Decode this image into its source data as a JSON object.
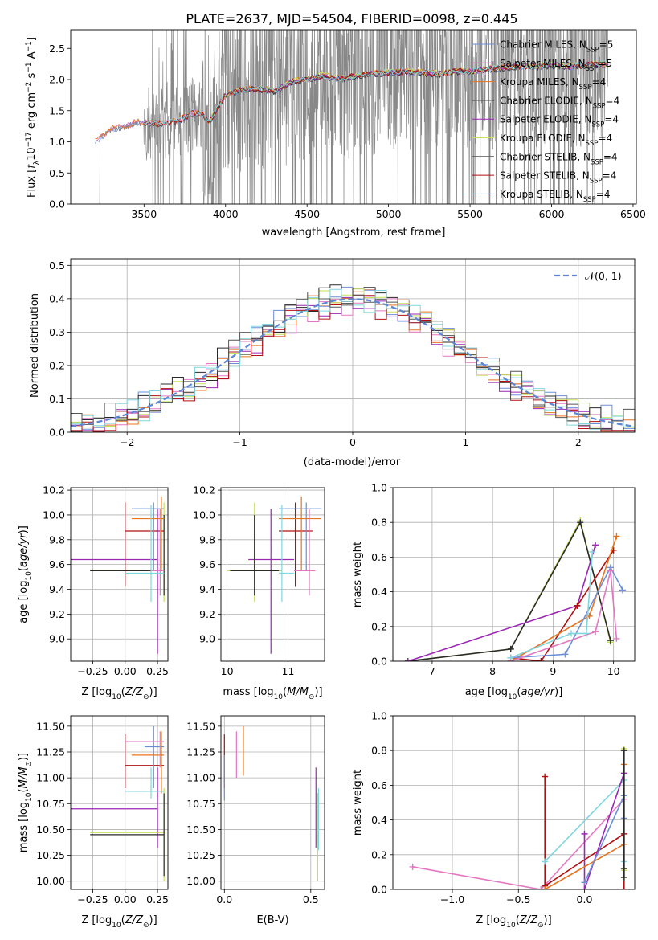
{
  "title": "PLATE=2637, MJD=54504, FIBERID=0098, z=0.445",
  "colors": {
    "chabrier_miles": "#6a8fd8",
    "salpeter_miles": "#e377c2",
    "kroupa_miles": "#e8731f",
    "chabrier_elodie": "#2a2a2a",
    "salpeter_elodie": "#9b27b3",
    "kroupa_elodie": "#c5e05c",
    "chabrier_stelib": "#555555",
    "salpeter_stelib": "#b01010",
    "kroupa_stelib": "#7fd6de",
    "data": "#888888",
    "grid": "#b0b0b0"
  },
  "chart_data": [
    {
      "type": "line",
      "panel": "spectrum",
      "xlabel": "wavelength [Angstrom, rest frame]",
      "ylabel": "Flux [fλ 10^-17 erg cm^-2 s^-1 A^-1]",
      "xlim": [
        3050,
        6520
      ],
      "ylim": [
        0,
        2.8
      ],
      "xticks": [
        3500,
        4000,
        4500,
        5000,
        5500,
        6000,
        6500
      ],
      "yticks": [
        0.0,
        0.5,
        1.0,
        1.5,
        2.0,
        2.5
      ],
      "legend_loc": "top-right",
      "legend": [
        {
          "label": "Chabrier MILES, N",
          "sub": "SSP",
          "n": "=5",
          "color_key": "chabrier_miles"
        },
        {
          "label": "Salpeter MILES, N",
          "sub": "SSP",
          "n": "=5",
          "color_key": "salpeter_miles"
        },
        {
          "label": "Kroupa MILES, N",
          "sub": "SSP",
          "n": "=4",
          "color_key": "kroupa_miles"
        },
        {
          "label": "Chabrier ELODIE, N",
          "sub": "SSP",
          "n": "=4",
          "color_key": "chabrier_elodie"
        },
        {
          "label": "Salpeter ELODIE, N",
          "sub": "SSP",
          "n": "=4",
          "color_key": "salpeter_elodie"
        },
        {
          "label": "Kroupa ELODIE, N",
          "sub": "SSP",
          "n": "=4",
          "color_key": "kroupa_elodie"
        },
        {
          "label": "Chabrier STELIB, N",
          "sub": "SSP",
          "n": "=4",
          "color_key": "chabrier_stelib"
        },
        {
          "label": "Salpeter STELIB, N",
          "sub": "SSP",
          "n": "=4",
          "color_key": "salpeter_stelib"
        },
        {
          "label": "Kroupa STELIB, N",
          "sub": "SSP",
          "n": "=4",
          "color_key": "kroupa_stelib"
        }
      ],
      "model_continuum": {
        "x": [
          3200,
          3230,
          3250,
          3300,
          3350,
          3400,
          3450,
          3500,
          3600,
          3700,
          3800,
          3850,
          3900,
          4000,
          4100,
          4200,
          4300,
          4400,
          4500,
          4600,
          4700,
          4800,
          4900,
          5000,
          5100,
          5200,
          5300,
          5400,
          5500,
          5600,
          5700,
          5800,
          5900,
          6000,
          6100,
          6200,
          6300,
          6350
        ],
        "y": [
          1.0,
          1.05,
          1.1,
          1.2,
          1.22,
          1.25,
          1.3,
          1.3,
          1.28,
          1.32,
          1.45,
          1.45,
          1.3,
          1.75,
          1.82,
          1.85,
          1.8,
          1.95,
          2.0,
          2.05,
          2.0,
          2.05,
          2.08,
          2.1,
          2.12,
          2.1,
          2.08,
          2.12,
          2.12,
          2.15,
          2.18,
          2.2,
          2.2,
          2.22,
          2.2,
          2.22,
          2.24,
          2.22
        ]
      }
    },
    {
      "type": "line",
      "panel": "residuals",
      "xlabel": "(data-model)/error",
      "ylabel": "Normed distribution",
      "xlim": [
        -2.5,
        2.5
      ],
      "ylim": [
        0,
        0.52
      ],
      "xticks": [
        -2,
        -1,
        0,
        1,
        2
      ],
      "xtick_labels": [
        "−2",
        "−1",
        "0",
        "1",
        "2"
      ],
      "yticks": [
        0.0,
        0.1,
        0.2,
        0.3,
        0.4,
        0.5
      ],
      "ytick_labels": [
        "0.0",
        "0.1",
        "0.2",
        "0.3",
        "0.4",
        "0.5"
      ],
      "legend_loc": "top-right",
      "legend_label": "𝒩(0, 1)",
      "reference": "normal(0,1) pdf"
    },
    {
      "type": "scatter",
      "panel": "age_vs_Z",
      "xlabel": "Z [log10(Z/Z⊙)]",
      "ylabel": "age [log10(age/yr)]",
      "xlim": [
        -0.42,
        0.33
      ],
      "ylim": [
        8.82,
        10.22
      ],
      "xticks": [
        -0.25,
        0.0,
        0.25
      ],
      "xtick_labels": [
        "−0.25",
        "0.00",
        "0.25"
      ],
      "yticks": [
        9.0,
        9.2,
        9.4,
        9.6,
        9.8,
        10.0,
        10.2
      ],
      "ytick_labels": [
        "9.0",
        "9.2",
        "9.4",
        "9.6",
        "9.8",
        "10.0",
        "10.2"
      ],
      "points": [
        {
          "c": "salpeter_stelib",
          "x": 0.0,
          "xe": [
            0.0,
            0.3
          ],
          "y": 9.87,
          "ye": [
            9.42,
            10.1
          ]
        },
        {
          "c": "salpeter_elodie",
          "x": 0.25,
          "xe": [
            -0.42,
            0.25
          ],
          "y": 9.64,
          "ye": [
            8.88,
            10.05
          ]
        },
        {
          "c": "kroupa_elodie",
          "x": 0.3,
          "xe": [
            -0.27,
            0.3
          ],
          "y": 9.55,
          "ye": [
            9.3,
            10.1
          ]
        },
        {
          "c": "chabrier_elodie",
          "x": 0.3,
          "xe": [
            -0.27,
            0.3
          ],
          "y": 9.55,
          "ye": [
            9.35,
            10.0
          ]
        },
        {
          "c": "chabrier_miles",
          "x": 0.22,
          "xe": [
            0.05,
            0.3
          ],
          "y": 10.05,
          "ye": [
            9.55,
            10.1
          ]
        },
        {
          "c": "kroupa_miles",
          "x": 0.28,
          "xe": [
            0.05,
            0.3
          ],
          "y": 9.97,
          "ye": [
            9.55,
            10.15
          ]
        },
        {
          "c": "salpeter_miles",
          "x": 0.27,
          "xe": [
            0.2,
            0.3
          ],
          "y": 9.55,
          "ye": [
            9.35,
            10.05
          ]
        },
        {
          "c": "kroupa_stelib",
          "x": 0.2,
          "xe": [
            0.0,
            0.3
          ],
          "y": 9.53,
          "ye": [
            9.3,
            10.08
          ]
        }
      ]
    },
    {
      "type": "scatter",
      "panel": "age_vs_mass",
      "xlabel": "mass [log10(M/M⊙)]",
      "ylabel": "",
      "xlim": [
        9.9,
        11.6
      ],
      "ylim": [
        8.82,
        10.22
      ],
      "xticks": [
        10,
        11
      ],
      "xtick_labels": [
        "10",
        "11"
      ],
      "yticks": [
        9.0,
        9.2,
        9.4,
        9.6,
        9.8,
        10.0,
        10.2
      ],
      "ytick_labels": [
        "9.0",
        "9.2",
        "9.4",
        "9.6",
        "9.8",
        "10.0",
        "10.2"
      ],
      "points": [
        {
          "c": "salpeter_stelib",
          "x": 11.12,
          "xe": [
            10.85,
            11.4
          ],
          "y": 9.87,
          "ye": [
            9.42,
            10.1
          ]
        },
        {
          "c": "salpeter_elodie",
          "x": 10.72,
          "xe": [
            10.35,
            11.1
          ],
          "y": 9.64,
          "ye": [
            8.88,
            10.05
          ]
        },
        {
          "c": "kroupa_elodie",
          "x": 10.45,
          "xe": [
            10.0,
            10.9
          ],
          "y": 9.55,
          "ye": [
            9.3,
            10.1
          ]
        },
        {
          "c": "chabrier_elodie",
          "x": 10.45,
          "xe": [
            10.05,
            10.85
          ],
          "y": 9.55,
          "ye": [
            9.35,
            10.0
          ]
        },
        {
          "c": "chabrier_miles",
          "x": 11.3,
          "xe": [
            10.85,
            11.55
          ],
          "y": 10.05,
          "ye": [
            9.55,
            10.1
          ]
        },
        {
          "c": "kroupa_miles",
          "x": 11.22,
          "xe": [
            10.85,
            11.55
          ],
          "y": 9.97,
          "ye": [
            9.55,
            10.15
          ]
        },
        {
          "c": "salpeter_miles",
          "x": 11.35,
          "xe": [
            11.1,
            11.45
          ],
          "y": 9.55,
          "ye": [
            9.35,
            10.05
          ]
        },
        {
          "c": "kroupa_stelib",
          "x": 10.9,
          "xe": [
            10.85,
            11.1
          ],
          "y": 9.53,
          "ye": [
            9.3,
            10.08
          ]
        }
      ]
    },
    {
      "type": "line",
      "panel": "weight_vs_age",
      "xlabel": "age [log10(age/yr)]",
      "ylabel": "mass weight",
      "xlim": [
        6.35,
        10.35
      ],
      "ylim": [
        0,
        1.0
      ],
      "xticks": [
        7,
        8,
        9,
        10
      ],
      "xtick_labels": [
        "7",
        "8",
        "9",
        "10"
      ],
      "yticks": [
        0.0,
        0.2,
        0.4,
        0.6,
        0.8,
        1.0
      ],
      "ytick_labels": [
        "0.0",
        "0.2",
        "0.4",
        "0.6",
        "0.8",
        "1.0"
      ],
      "series": [
        {
          "c": "kroupa_elodie",
          "x": [
            6.6,
            8.3,
            9.45,
            9.95
          ],
          "y": [
            0.0,
            0.07,
            0.81,
            0.11
          ]
        },
        {
          "c": "chabrier_elodie",
          "x": [
            6.6,
            8.3,
            9.45,
            9.95
          ],
          "y": [
            0.0,
            0.07,
            0.8,
            0.12
          ]
        },
        {
          "c": "salpeter_elodie",
          "x": [
            6.6,
            9.4,
            9.7
          ],
          "y": [
            0.0,
            0.32,
            0.67
          ]
        },
        {
          "c": "salpeter_stelib",
          "x": [
            8.3,
            8.8,
            9.4,
            10.0
          ],
          "y": [
            0.02,
            0.0,
            0.32,
            0.64
          ]
        },
        {
          "c": "kroupa_miles",
          "x": [
            8.3,
            9.6,
            10.05
          ],
          "y": [
            0.0,
            0.26,
            0.72
          ]
        },
        {
          "c": "chabrier_miles",
          "x": [
            8.3,
            9.2,
            9.95,
            10.15
          ],
          "y": [
            0.02,
            0.04,
            0.54,
            0.41
          ]
        },
        {
          "c": "salpeter_miles",
          "x": [
            8.3,
            9.7,
            9.95,
            10.05
          ],
          "y": [
            0.0,
            0.17,
            0.52,
            0.13
          ]
        },
        {
          "c": "kroupa_stelib",
          "x": [
            8.3,
            9.3,
            9.55,
            9.65
          ],
          "y": [
            0.02,
            0.16,
            0.16,
            0.63
          ]
        }
      ]
    },
    {
      "type": "scatter",
      "panel": "mass_vs_Z",
      "xlabel": "Z [log10(Z/Z⊙)]",
      "ylabel": "mass [log10(M/M⊙)]",
      "xlim": [
        -0.42,
        0.33
      ],
      "ylim": [
        9.92,
        11.6
      ],
      "xticks": [
        -0.25,
        0.0,
        0.25
      ],
      "xtick_labels": [
        "−0.25",
        "0.00",
        "0.25"
      ],
      "yticks": [
        10.0,
        10.25,
        10.5,
        10.75,
        11.0,
        11.25,
        11.5
      ],
      "ytick_labels": [
        "10.00",
        "10.25",
        "10.50",
        "10.75",
        "11.00",
        "11.25",
        "11.50"
      ],
      "points": [
        {
          "c": "salpeter_stelib",
          "x": 0.0,
          "xe": [
            0.0,
            0.3
          ],
          "y": 11.12,
          "ye": [
            10.9,
            11.42
          ]
        },
        {
          "c": "salpeter_elodie",
          "x": 0.25,
          "xe": [
            -0.42,
            0.25
          ],
          "y": 10.7,
          "ye": [
            10.32,
            11.1
          ]
        },
        {
          "c": "kroupa_elodie",
          "x": 0.3,
          "xe": [
            -0.27,
            0.3
          ],
          "y": 10.47,
          "ye": [
            10.0,
            10.9
          ]
        },
        {
          "c": "chabrier_elodie",
          "x": 0.3,
          "xe": [
            -0.27,
            0.3
          ],
          "y": 10.45,
          "ye": [
            10.05,
            10.85
          ]
        },
        {
          "c": "chabrier_miles",
          "x": 0.22,
          "xe": [
            0.15,
            0.3
          ],
          "y": 11.3,
          "ye": [
            10.9,
            11.5
          ]
        },
        {
          "c": "kroupa_miles",
          "x": 0.28,
          "xe": [
            0.05,
            0.3
          ],
          "y": 11.22,
          "ye": [
            10.85,
            11.45
          ]
        },
        {
          "c": "salpeter_miles",
          "x": 0.27,
          "xe": [
            0.0,
            0.3
          ],
          "y": 11.35,
          "ye": [
            11.1,
            11.45
          ]
        },
        {
          "c": "kroupa_stelib",
          "x": 0.2,
          "xe": [
            0.0,
            0.3
          ],
          "y": 10.87,
          "ye": [
            10.8,
            11.1
          ]
        }
      ]
    },
    {
      "type": "scatter",
      "panel": "mass_vs_EBV",
      "xlabel": "E(B-V)",
      "ylabel": "",
      "xlim": [
        -0.02,
        0.58
      ],
      "ylim": [
        9.92,
        11.6
      ],
      "xticks": [
        0.0,
        0.5
      ],
      "xtick_labels": [
        "0.0",
        "0.5"
      ],
      "yticks": [
        10.0,
        10.25,
        10.5,
        10.75,
        11.0,
        11.25,
        11.5
      ],
      "ytick_labels": [
        "10.00",
        "10.25",
        "10.50",
        "10.75",
        "11.00",
        "11.25",
        "11.50"
      ],
      "points": [
        {
          "c": "salpeter_stelib",
          "x": 0.0,
          "y": 11.12,
          "ye": [
            10.9,
            11.42
          ]
        },
        {
          "c": "chabrier_miles",
          "x": 0.0,
          "y": 11.0,
          "ye": [
            10.78,
            11.22
          ]
        },
        {
          "c": "salpeter_miles",
          "x": 0.07,
          "y": 11.25,
          "ye": [
            11.0,
            11.45
          ]
        },
        {
          "c": "kroupa_miles",
          "x": 0.11,
          "y": 11.25,
          "ye": [
            11.02,
            11.5
          ]
        },
        {
          "c": "salpeter_elodie",
          "x": 0.53,
          "y": 10.7,
          "ye": [
            10.32,
            11.1
          ]
        },
        {
          "c": "chabrier_elodie",
          "x": 0.54,
          "y": 10.45,
          "ye": [
            10.05,
            10.85
          ]
        },
        {
          "c": "kroupa_elodie",
          "x": 0.54,
          "y": 10.47,
          "ye": [
            10.0,
            10.85
          ]
        },
        {
          "c": "kroupa_stelib",
          "x": 0.545,
          "y": 10.6,
          "ye": [
            10.3,
            10.9
          ]
        }
      ]
    },
    {
      "type": "line",
      "panel": "weight_vs_Z",
      "xlabel": "Z [log10(Z/Z⊙)]",
      "ylabel": "mass weight",
      "xlim": [
        -1.45,
        0.38
      ],
      "ylim": [
        0,
        1.0
      ],
      "xticks": [
        -1.0,
        -0.5,
        0.0
      ],
      "xtick_labels": [
        "−1.0",
        "−0.5",
        "0.0"
      ],
      "yticks": [
        0.0,
        0.2,
        0.4,
        0.6,
        0.8,
        1.0
      ],
      "ytick_labels": [
        "0.0",
        "0.2",
        "0.4",
        "0.6",
        "0.8",
        "1.0"
      ],
      "series": [
        {
          "c": "salpeter_miles",
          "x": [
            -1.3,
            -0.33,
            0.3
          ],
          "y": [
            0.13,
            0.0,
            0.52
          ]
        },
        {
          "c": "salpeter_stelib",
          "x": [
            -0.3,
            -0.3,
            0.3,
            0.3
          ],
          "y": [
            0.65,
            0.02,
            0.32,
            0.0
          ]
        },
        {
          "c": "kroupa_stelib",
          "x": [
            -0.3,
            0.3,
            0.3
          ],
          "y": [
            0.16,
            0.63,
            0.16
          ]
        },
        {
          "c": "salpeter_elodie",
          "x": [
            0.0,
            0.0,
            0.3
          ],
          "y": [
            0.32,
            0.0,
            0.67
          ]
        },
        {
          "c": "kroupa_miles",
          "x": [
            -0.3,
            0.3,
            0.3
          ],
          "y": [
            0.0,
            0.26,
            0.72
          ]
        },
        {
          "c": "chabrier_miles",
          "x": [
            0.0,
            0.3,
            0.3
          ],
          "y": [
            0.04,
            0.54,
            0.41
          ]
        },
        {
          "c": "kroupa_elodie",
          "x": [
            0.3,
            0.3,
            0.3
          ],
          "y": [
            0.07,
            0.81,
            0.11
          ]
        },
        {
          "c": "chabrier_elodie",
          "x": [
            0.3,
            0.3,
            0.3
          ],
          "y": [
            0.07,
            0.8,
            0.12
          ]
        }
      ]
    }
  ]
}
